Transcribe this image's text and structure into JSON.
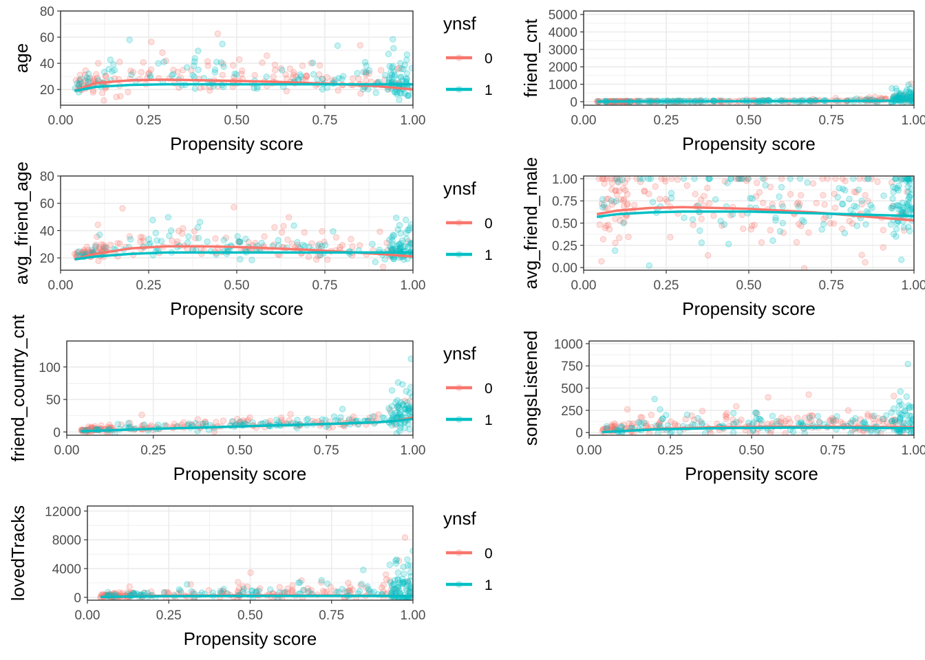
{
  "colors": {
    "group0": "#F8766D",
    "group1": "#00BFC4",
    "grid": "#EBEBEB",
    "panel_border": "#333333"
  },
  "legend": {
    "title": "ynsf",
    "entries": [
      "0",
      "1"
    ]
  },
  "chart_data": [
    {
      "type": "scatter",
      "xlabel": "Propensity score",
      "ylabel": "age",
      "xlim": [
        0,
        1
      ],
      "ylim": [
        8,
        80
      ],
      "xticks": [
        0,
        0.25,
        0.5,
        0.75,
        1
      ],
      "xtick_labels": [
        "0.00",
        "0.25",
        "0.50",
        "0.75",
        "1.00"
      ],
      "yticks": [
        20,
        40,
        60,
        80
      ],
      "ytick_labels": [
        "20",
        "40",
        "60",
        "80"
      ],
      "legend": true,
      "series": [
        {
          "name": "0",
          "x": [
            0.04,
            0.1,
            0.2,
            0.3,
            0.4,
            0.5,
            0.6,
            0.7,
            0.8,
            0.9,
            1.0
          ],
          "y": [
            19,
            25,
            27,
            27.5,
            27,
            26.5,
            26,
            25,
            24,
            22.5,
            20
          ]
        },
        {
          "name": "1",
          "x": [
            0.04,
            0.1,
            0.2,
            0.3,
            0.4,
            0.5,
            0.6,
            0.7,
            0.8,
            0.9,
            1.0
          ],
          "y": [
            19,
            22,
            23.5,
            24,
            24,
            24,
            24,
            24,
            24,
            24,
            24
          ]
        }
      ],
      "scatter_model": {
        "mean": [
          19,
          24,
          27,
          27,
          26,
          25.5,
          25,
          24.5,
          24,
          23,
          22
        ],
        "spread": [
          3,
          9,
          13,
          12,
          11,
          10,
          10,
          10,
          10,
          11,
          12
        ],
        "ymax": 80
      }
    },
    {
      "type": "scatter",
      "xlabel": "Propensity score",
      "ylabel": "friend_cnt",
      "xlim": [
        0,
        1
      ],
      "ylim": [
        -200,
        5200
      ],
      "xticks": [
        0,
        0.25,
        0.5,
        0.75,
        1
      ],
      "xtick_labels": [
        "0.00",
        "0.25",
        "0.50",
        "0.75",
        "1.00"
      ],
      "yticks": [
        0,
        1000,
        2000,
        3000,
        4000,
        5000
      ],
      "ytick_labels": [
        "0",
        "1000",
        "2000",
        "3000",
        "4000",
        "5000"
      ],
      "legend": false,
      "series": [
        {
          "name": "0",
          "x": [
            0.04,
            0.25,
            0.5,
            0.75,
            0.95,
            1.0
          ],
          "y": [
            10,
            20,
            30,
            40,
            60,
            80
          ]
        },
        {
          "name": "1",
          "x": [
            0.04,
            0.25,
            0.5,
            0.75,
            0.95,
            1.0
          ],
          "y": [
            10,
            20,
            30,
            40,
            60,
            80
          ]
        }
      ],
      "scatter_model": {
        "mean": [
          10,
          15,
          20,
          25,
          30,
          35,
          40,
          45,
          55,
          70,
          150
        ],
        "spread": [
          10,
          15,
          20,
          25,
          30,
          35,
          40,
          45,
          55,
          80,
          500
        ],
        "ymax": 5000
      }
    },
    {
      "type": "scatter",
      "xlabel": "Propensity score",
      "ylabel": "avg_friend_age",
      "xlim": [
        0,
        1
      ],
      "ylim": [
        11,
        80
      ],
      "xticks": [
        0,
        0.25,
        0.5,
        0.75,
        1
      ],
      "xtick_labels": [
        "0.00",
        "0.25",
        "0.50",
        "0.75",
        "1.00"
      ],
      "yticks": [
        20,
        40,
        60,
        80
      ],
      "ytick_labels": [
        "20",
        "40",
        "60",
        "80"
      ],
      "legend": true,
      "series": [
        {
          "name": "0",
          "x": [
            0.04,
            0.1,
            0.2,
            0.3,
            0.4,
            0.5,
            0.6,
            0.7,
            0.8,
            0.9,
            1.0
          ],
          "y": [
            19,
            23,
            27,
            28.5,
            28.5,
            28,
            27,
            26,
            24.5,
            23,
            21
          ]
        },
        {
          "name": "1",
          "x": [
            0.04,
            0.1,
            0.2,
            0.3,
            0.4,
            0.5,
            0.6,
            0.7,
            0.8,
            0.9,
            1.0
          ],
          "y": [
            19,
            21,
            23,
            24,
            24,
            24,
            24,
            24,
            24,
            24,
            24
          ]
        }
      ],
      "scatter_model": {
        "mean": [
          19,
          23,
          27,
          28,
          27,
          26,
          25,
          25,
          24,
          24,
          24
        ],
        "spread": [
          2,
          6,
          10,
          10,
          9,
          8,
          8,
          8,
          8,
          8,
          8
        ],
        "ymax": 78
      }
    },
    {
      "type": "scatter",
      "xlabel": "Propensity score",
      "ylabel": "avg_friend_male",
      "xlim": [
        0,
        1
      ],
      "ylim": [
        -0.03,
        1.03
      ],
      "xticks": [
        0,
        0.25,
        0.5,
        0.75,
        1
      ],
      "xtick_labels": [
        "0.00",
        "0.25",
        "0.50",
        "0.75",
        "1.00"
      ],
      "yticks": [
        0,
        0.25,
        0.5,
        0.75,
        1
      ],
      "ytick_labels": [
        "0.00",
        "0.25",
        "0.50",
        "0.75",
        "1.00"
      ],
      "legend": false,
      "series": [
        {
          "name": "0",
          "x": [
            0.04,
            0.1,
            0.2,
            0.3,
            0.4,
            0.5,
            0.6,
            0.7,
            0.8,
            0.9,
            1.0
          ],
          "y": [
            0.6,
            0.64,
            0.67,
            0.68,
            0.67,
            0.66,
            0.64,
            0.62,
            0.59,
            0.56,
            0.53
          ]
        },
        {
          "name": "1",
          "x": [
            0.04,
            0.1,
            0.2,
            0.3,
            0.4,
            0.5,
            0.6,
            0.7,
            0.8,
            0.9,
            1.0
          ],
          "y": [
            0.57,
            0.6,
            0.62,
            0.63,
            0.63,
            0.63,
            0.62,
            0.61,
            0.6,
            0.59,
            0.58
          ]
        }
      ],
      "scatter_model": {
        "mean": [
          0.6,
          0.62,
          0.64,
          0.65,
          0.64,
          0.63,
          0.62,
          0.61,
          0.6,
          0.59,
          0.58
        ],
        "spread": [
          0.4,
          0.45,
          0.5,
          0.5,
          0.5,
          0.5,
          0.45,
          0.45,
          0.45,
          0.45,
          0.45
        ],
        "ymax": 1.0
      }
    },
    {
      "type": "scatter",
      "xlabel": "Propensity score",
      "ylabel": "friend_country_cnt",
      "xlim": [
        0,
        1
      ],
      "ylim": [
        -5,
        140
      ],
      "xticks": [
        0,
        0.25,
        0.5,
        0.75,
        1
      ],
      "xtick_labels": [
        "0.00",
        "0.25",
        "0.50",
        "0.75",
        "1.00"
      ],
      "yticks": [
        0,
        50,
        100
      ],
      "ytick_labels": [
        "0",
        "50",
        "100"
      ],
      "legend": true,
      "series": [
        {
          "name": "0",
          "x": [
            0.04,
            0.2,
            0.4,
            0.6,
            0.8,
            0.9,
            0.95,
            1.0
          ],
          "y": [
            1,
            4,
            7,
            10,
            13,
            15,
            17,
            22
          ]
        },
        {
          "name": "1",
          "x": [
            0.04,
            0.2,
            0.4,
            0.6,
            0.8,
            0.9,
            0.95,
            1.0
          ],
          "y": [
            1,
            4,
            7,
            10,
            13,
            15,
            17,
            20
          ]
        }
      ],
      "scatter_model": {
        "mean": [
          1,
          3,
          5,
          7,
          9,
          10,
          11,
          12,
          13,
          15,
          22
        ],
        "spread": [
          1,
          3,
          4,
          5,
          6,
          6,
          6,
          7,
          8,
          10,
          40
        ],
        "ymax": 135
      }
    },
    {
      "type": "scatter",
      "xlabel": "Propensity score",
      "ylabel": "songsListened",
      "xlim": [
        0,
        1
      ],
      "ylim": [
        -30,
        1030
      ],
      "xticks": [
        0,
        0.25,
        0.5,
        0.75,
        1
      ],
      "xtick_labels": [
        "0.00",
        "0.25",
        "0.50",
        "0.75",
        "1.00"
      ],
      "yticks": [
        0,
        250,
        500,
        750,
        1000
      ],
      "ytick_labels": [
        "0",
        "250",
        "500",
        "750",
        "1000"
      ],
      "legend": false,
      "series": [
        {
          "name": "0",
          "x": [
            0.04,
            0.2,
            0.4,
            0.6,
            0.8,
            1.0
          ],
          "y": [
            5,
            40,
            60,
            65,
            65,
            60
          ]
        },
        {
          "name": "1",
          "x": [
            0.04,
            0.2,
            0.4,
            0.6,
            0.8,
            1.0
          ],
          "y": [
            5,
            35,
            50,
            55,
            55,
            50
          ]
        }
      ],
      "scatter_model": {
        "mean": [
          5,
          40,
          60,
          65,
          65,
          65,
          65,
          65,
          65,
          70,
          80
        ],
        "spread": [
          5,
          50,
          90,
          100,
          100,
          100,
          100,
          110,
          120,
          140,
          200
        ],
        "ymax": 1000
      }
    },
    {
      "type": "scatter",
      "xlabel": "Propensity score",
      "ylabel": "lovedTracks",
      "xlim": [
        0,
        1
      ],
      "ylim": [
        -400,
        12700
      ],
      "xticks": [
        0,
        0.25,
        0.5,
        0.75,
        1
      ],
      "xtick_labels": [
        "0.00",
        "0.25",
        "0.50",
        "0.75",
        "1.00"
      ],
      "yticks": [
        0,
        4000,
        8000,
        12000
      ],
      "ytick_labels": [
        "0",
        "4000",
        "8000",
        "12000"
      ],
      "legend": true,
      "series": [
        {
          "name": "0",
          "x": [
            0.04,
            0.2,
            0.4,
            0.6,
            0.8,
            1.0
          ],
          "y": [
            50,
            200,
            250,
            260,
            250,
            200
          ]
        },
        {
          "name": "1",
          "x": [
            0.04,
            0.2,
            0.4,
            0.6,
            0.8,
            1.0
          ],
          "y": [
            50,
            150,
            180,
            200,
            200,
            180
          ]
        }
      ],
      "scatter_model": {
        "mean": [
          50,
          200,
          300,
          350,
          380,
          400,
          400,
          420,
          450,
          500,
          600
        ],
        "spread": [
          80,
          400,
          700,
          800,
          850,
          900,
          950,
          1000,
          1100,
          1300,
          2200
        ],
        "ymax": 12500
      }
    }
  ]
}
